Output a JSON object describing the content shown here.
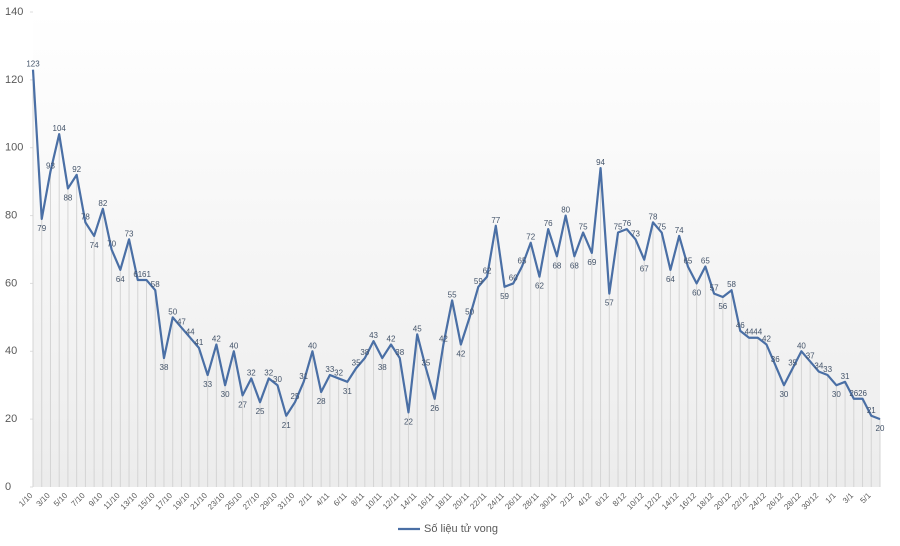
{
  "chart_data": {
    "type": "line",
    "categories": [
      "1/10",
      null,
      "3/10",
      null,
      "5/10",
      null,
      "7/10",
      null,
      "9/10",
      null,
      "11/10",
      null,
      "13/10",
      null,
      "15/10",
      null,
      "17/10",
      null,
      "19/10",
      null,
      "21/10",
      null,
      "23/10",
      null,
      "25/10",
      null,
      "27/10",
      null,
      "29/10",
      null,
      "31/10",
      null,
      "2/11",
      null,
      "4/11",
      null,
      "6/11",
      null,
      "8/11",
      null,
      "10/11",
      null,
      "12/11",
      null,
      "14/11",
      null,
      "16/11",
      null,
      "18/11",
      null,
      "20/11",
      null,
      "22/11",
      null,
      "24/11",
      null,
      "26/11",
      null,
      "28/11",
      null,
      "30/11",
      null,
      "2/12",
      null,
      "4/12",
      null,
      "6/12",
      null,
      "8/12",
      null,
      "10/12",
      null,
      "12/12",
      null,
      "14/12",
      null,
      "16/12",
      null,
      "18/12",
      null,
      "20/12",
      null,
      "22/12",
      null,
      "24/12",
      null,
      "26/12",
      null,
      "28/12",
      null,
      "30/12",
      null,
      "1/1",
      null,
      "3/1",
      null,
      "5/1",
      null
    ],
    "series": [
      {
        "name": "Số liệu tử vong",
        "color": "#4a6fa5",
        "values": [
          123,
          79,
          93,
          104,
          88,
          92,
          78,
          74,
          82,
          70,
          64,
          73,
          61,
          61,
          58,
          38,
          50,
          47,
          44,
          41,
          33,
          42,
          30,
          40,
          27,
          32,
          25,
          32,
          30,
          21,
          25,
          31,
          40,
          28,
          33,
          32,
          31,
          35,
          38,
          43,
          38,
          42,
          38,
          22,
          45,
          35,
          26,
          42,
          55,
          42,
          50,
          59,
          62,
          77,
          59,
          60,
          65,
          72,
          62,
          76,
          68,
          80,
          68,
          75,
          69,
          94,
          57,
          75,
          76,
          73,
          67,
          78,
          75,
          64,
          74,
          65,
          60,
          65,
          57,
          56,
          58,
          46,
          44,
          44,
          42,
          36,
          30,
          35,
          40,
          37,
          34,
          33,
          30,
          31,
          26,
          26,
          21,
          20
        ]
      }
    ],
    "ylim": [
      0,
      140
    ],
    "yticks": [
      0,
      20,
      40,
      60,
      80,
      100,
      120,
      140
    ],
    "legend": "bottom"
  }
}
